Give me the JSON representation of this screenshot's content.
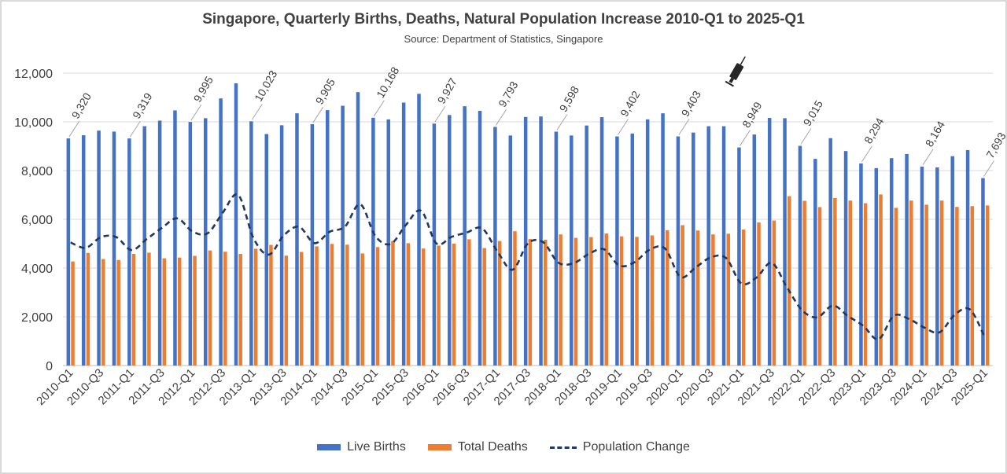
{
  "chart_data": {
    "type": "bar",
    "title": "Singapore, Quarterly Births, Deaths, Natural Population Increase 2010-Q1 to 2025-Q1",
    "subtitle": "Source: Department of Statistics, Singapore",
    "ylim": [
      0,
      12000
    ],
    "yticks": [
      "0",
      "2,000",
      "4,000",
      "6,000",
      "8,000",
      "10,000",
      "12,000"
    ],
    "categories": [
      "2010-Q1",
      "2010-Q2",
      "2010-Q3",
      "2010-Q4",
      "2011-Q1",
      "2011-Q2",
      "2011-Q3",
      "2011-Q4",
      "2012-Q1",
      "2012-Q2",
      "2012-Q3",
      "2012-Q4",
      "2013-Q1",
      "2013-Q2",
      "2013-Q3",
      "2013-Q4",
      "2014-Q1",
      "2014-Q2",
      "2014-Q3",
      "2014-Q4",
      "2015-Q1",
      "2015-Q2",
      "2015-Q3",
      "2015-Q4",
      "2016-Q1",
      "2016-Q2",
      "2016-Q3",
      "2016-Q4",
      "2017-Q1",
      "2017-Q2",
      "2017-Q3",
      "2017-Q4",
      "2018-Q1",
      "2018-Q2",
      "2018-Q3",
      "2018-Q4",
      "2019-Q1",
      "2019-Q2",
      "2019-Q3",
      "2019-Q4",
      "2020-Q1",
      "2020-Q2",
      "2020-Q3",
      "2020-Q4",
      "2021-Q1",
      "2021-Q2",
      "2021-Q3",
      "2021-Q4",
      "2022-Q1",
      "2022-Q2",
      "2022-Q3",
      "2022-Q4",
      "2023-Q1",
      "2023-Q2",
      "2023-Q3",
      "2023-Q4",
      "2024-Q1",
      "2024-Q2",
      "2024-Q3",
      "2024-Q4",
      "2025-Q1"
    ],
    "x_tick_labels": [
      "2010-Q1",
      "2010-Q3",
      "2011-Q1",
      "2011-Q3",
      "2012-Q1",
      "2012-Q3",
      "2013-Q1",
      "2013-Q3",
      "2014-Q1",
      "2014-Q3",
      "2015-Q1",
      "2015-Q3",
      "2016-Q1",
      "2016-Q3",
      "2017-Q1",
      "2017-Q3",
      "2018-Q1",
      "2018-Q3",
      "2019-Q1",
      "2019-Q3",
      "2020-Q1",
      "2020-Q3",
      "2021-Q1",
      "2021-Q3",
      "2022-Q1",
      "2022-Q3",
      "2023-Q1",
      "2023-Q3",
      "2024-Q1",
      "2024-Q3",
      "2025-Q1"
    ],
    "grid": true,
    "legend_position": "bottom",
    "series": [
      {
        "name": "Live Births",
        "type": "bar",
        "color": "#4472c4",
        "values": [
          9320,
          9450,
          9640,
          9600,
          9319,
          9820,
          10050,
          10470,
          9995,
          10150,
          10960,
          11580,
          10023,
          9500,
          9860,
          10350,
          9905,
          10480,
          10660,
          11220,
          10168,
          10100,
          10790,
          11150,
          9927,
          10280,
          10640,
          10450,
          9793,
          9440,
          10200,
          10220,
          9598,
          9440,
          9850,
          10190,
          9402,
          9520,
          10100,
          10350,
          9403,
          9560,
          9820,
          9820,
          8949,
          9480,
          10160,
          10150,
          9015,
          8480,
          9330,
          8800,
          8294,
          8100,
          8510,
          8680,
          8164,
          8130,
          8590,
          8840,
          7693
        ]
      },
      {
        "name": "Total Deaths",
        "type": "bar",
        "color": "#ed7d31",
        "values": [
          4270,
          4620,
          4370,
          4330,
          4580,
          4630,
          4400,
          4430,
          4500,
          4720,
          4670,
          4580,
          4790,
          4950,
          4510,
          4660,
          4890,
          4990,
          4960,
          4600,
          4860,
          5110,
          5020,
          4800,
          4920,
          5000,
          5180,
          4820,
          5110,
          5510,
          5190,
          5160,
          5380,
          5240,
          5270,
          5420,
          5300,
          5280,
          5340,
          5550,
          5760,
          5540,
          5380,
          5410,
          5580,
          5870,
          5950,
          6950,
          6760,
          6500,
          6870,
          6770,
          6660,
          7020,
          6470,
          6770,
          6600,
          6770,
          6510,
          6540,
          6570
        ]
      },
      {
        "name": "Population Change",
        "type": "line",
        "color": "#1f3864",
        "values": [
          5050,
          4830,
          5270,
          5270,
          4740,
          5190,
          5650,
          6040,
          5500,
          5430,
          6290,
          7000,
          5230,
          4550,
          5350,
          5690,
          5020,
          5490,
          5700,
          6620,
          5310,
          4990,
          5770,
          6350,
          5010,
          5280,
          5460,
          5630,
          4680,
          3930,
          5010,
          5060,
          4220,
          4200,
          4580,
          4770,
          4100,
          4240,
          4760,
          4800,
          3640,
          4020,
          4440,
          4410,
          3370,
          3610,
          4210,
          3200,
          2260,
          1980,
          2460,
          2030,
          1630,
          1080,
          2040,
          1910,
          1560,
          1360,
          2080,
          2300,
          1120
        ]
      }
    ],
    "data_labels": [
      {
        "index": 0,
        "text": "9,320"
      },
      {
        "index": 4,
        "text": "9,319"
      },
      {
        "index": 8,
        "text": "9,995"
      },
      {
        "index": 12,
        "text": "10,023"
      },
      {
        "index": 16,
        "text": "9,905"
      },
      {
        "index": 20,
        "text": "10,168"
      },
      {
        "index": 24,
        "text": "9,927"
      },
      {
        "index": 28,
        "text": "9,793"
      },
      {
        "index": 32,
        "text": "9,598"
      },
      {
        "index": 36,
        "text": "9,402"
      },
      {
        "index": 40,
        "text": "9,403"
      },
      {
        "index": 44,
        "text": "8,949"
      },
      {
        "index": 48,
        "text": "9,015"
      },
      {
        "index": 52,
        "text": "8,294"
      },
      {
        "index": 56,
        "text": "8,164"
      },
      {
        "index": 60,
        "text": "7,693"
      }
    ],
    "annotation_icon": {
      "name": "syringe-icon",
      "category_index": 44
    }
  }
}
